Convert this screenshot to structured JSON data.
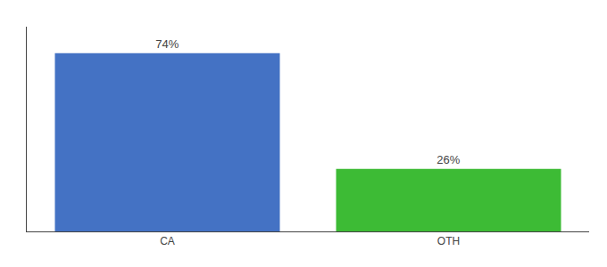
{
  "chart_data": {
    "type": "bar",
    "categories": [
      "CA",
      "OTH"
    ],
    "values": [
      74,
      26
    ],
    "value_labels": [
      "74%",
      "26%"
    ],
    "colors": [
      "#4472c4",
      "#3dbb35"
    ],
    "ylim": [
      0,
      85
    ],
    "yticks": [],
    "grid": false,
    "data_labels": true,
    "tick_labels": "x"
  }
}
